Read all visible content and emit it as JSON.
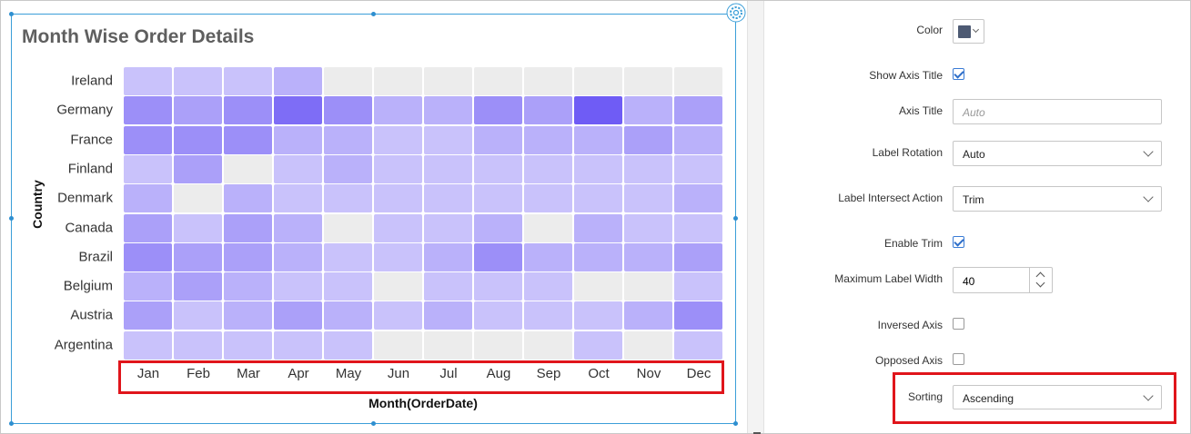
{
  "chart": {
    "title": "Month Wise Order Details",
    "y_axis_title": "Country",
    "x_axis_title": "Month(OrderDate)"
  },
  "chart_data": {
    "type": "heatmap",
    "title": "Month Wise Order Details",
    "xlabel": "Month(OrderDate)",
    "ylabel": "Country",
    "x": [
      "Jan",
      "Feb",
      "Mar",
      "Apr",
      "May",
      "Jun",
      "Jul",
      "Aug",
      "Sep",
      "Oct",
      "Nov",
      "Dec"
    ],
    "y": [
      "Ireland",
      "Germany",
      "France",
      "Finland",
      "Denmark",
      "Canada",
      "Brazil",
      "Belgium",
      "Austria",
      "Argentina"
    ],
    "values": [
      [
        2,
        2,
        2,
        3,
        null,
        null,
        null,
        null,
        null,
        null,
        null,
        null
      ],
      [
        5,
        4,
        5,
        7,
        5,
        3,
        3,
        5,
        4,
        8,
        3,
        4
      ],
      [
        5,
        5,
        5,
        3,
        3,
        2,
        2,
        3,
        3,
        3,
        4,
        3
      ],
      [
        2,
        4,
        null,
        2,
        3,
        2,
        2,
        2,
        2,
        2,
        2,
        2
      ],
      [
        3,
        null,
        3,
        2,
        2,
        2,
        2,
        2,
        2,
        2,
        2,
        3
      ],
      [
        4,
        2,
        4,
        3,
        null,
        2,
        2,
        3,
        null,
        3,
        2,
        2
      ],
      [
        5,
        4,
        4,
        3,
        2,
        2,
        3,
        5,
        3,
        3,
        3,
        4
      ],
      [
        3,
        4,
        3,
        2,
        2,
        null,
        2,
        2,
        2,
        null,
        null,
        2
      ],
      [
        4,
        2,
        3,
        4,
        3,
        2,
        3,
        2,
        2,
        2,
        3,
        5
      ],
      [
        2,
        2,
        2,
        2,
        2,
        null,
        null,
        null,
        null,
        2,
        null,
        2
      ]
    ],
    "colors": {
      "low": "#c9c2fb",
      "high": "#6f5cf5",
      "empty": "#ececec"
    }
  },
  "properties": {
    "color_label": "Color",
    "color_value": "#4d5a73",
    "show_axis_title_label": "Show Axis Title",
    "show_axis_title_checked": true,
    "axis_title_label": "Axis Title",
    "axis_title_placeholder": "Auto",
    "label_rotation_label": "Label Rotation",
    "label_rotation_value": "Auto",
    "label_intersect_label": "Label Intersect Action",
    "label_intersect_value": "Trim",
    "enable_trim_label": "Enable Trim",
    "enable_trim_checked": true,
    "max_label_width_label": "Maximum Label Width",
    "max_label_width_value": "40",
    "inversed_axis_label": "Inversed Axis",
    "inversed_axis_checked": false,
    "opposed_axis_label": "Opposed Axis",
    "opposed_axis_checked": false,
    "sorting_label": "Sorting",
    "sorting_value": "Ascending"
  }
}
